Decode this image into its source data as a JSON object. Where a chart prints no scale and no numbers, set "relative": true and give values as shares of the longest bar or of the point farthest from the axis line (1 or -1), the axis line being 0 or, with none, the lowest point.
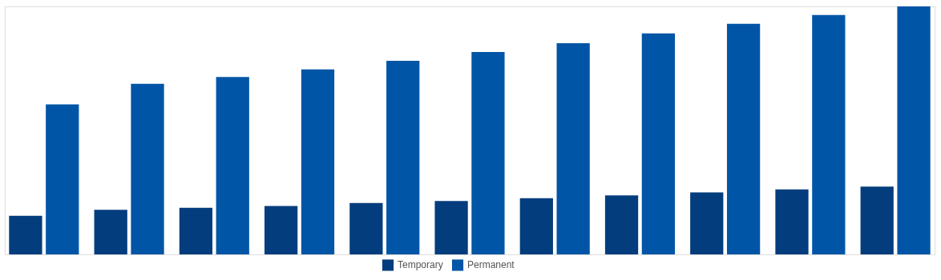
{
  "chart_data": {
    "type": "bar",
    "relative": true,
    "legend": "bottom",
    "categories": [
      null,
      null,
      null,
      null,
      null,
      null,
      null,
      null,
      null,
      null,
      null
    ],
    "series": [
      {
        "name": "Temporary",
        "color": "#033d7d",
        "values": [
          0.156,
          0.18,
          0.188,
          0.195,
          0.207,
          0.215,
          0.227,
          0.238,
          0.25,
          0.262,
          0.273
        ]
      },
      {
        "name": "Permanent",
        "color": "#0055a6",
        "values": [
          0.605,
          0.688,
          0.715,
          0.746,
          0.781,
          0.816,
          0.852,
          0.891,
          0.93,
          0.965,
          1
        ]
      }
    ]
  }
}
